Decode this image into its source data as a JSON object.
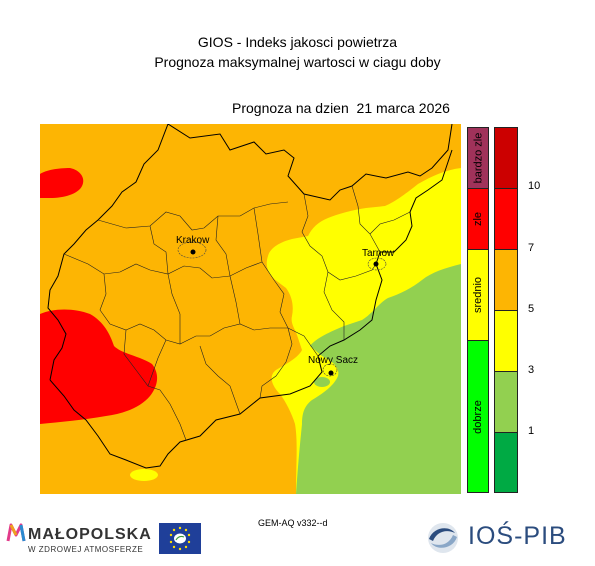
{
  "header": {
    "title": "GIOS - Indeks jakosci powietrza",
    "subtitle": "Prognoza maksymalnej wartosci w ciagu doby",
    "forecast_date": "Prognoza na dzien  21 marca 2026"
  },
  "map": {
    "cities": [
      {
        "name": "Krakow"
      },
      {
        "name": "Tarnow"
      },
      {
        "name": "Nowy Sacz"
      }
    ],
    "colors": {
      "orange": "#FDB503",
      "yellow": "#FFFF00",
      "red": "#FF0000",
      "green": "#92D050"
    }
  },
  "legend": {
    "categories": [
      {
        "label": "bardzo zle",
        "color": "#A0325A"
      },
      {
        "label": "zle",
        "color": "#FF0000"
      },
      {
        "label": "srednio",
        "color": "#FFFF00"
      },
      {
        "label": "dobrze",
        "color": "#00FF00"
      }
    ],
    "value_colors": [
      "#CC0000",
      "#FF0000",
      "#FDB503",
      "#FFFF00",
      "#92D050",
      "#00AA44"
    ],
    "ticks": [
      "10",
      "7",
      "5",
      "3",
      "1"
    ]
  },
  "footer": {
    "model": "GEM-AQ v332--d",
    "malopolska_name": "MAŁOPOLSKA",
    "malopolska_tagline": "W ZDROWEJ ATMOSFERZE",
    "ios_name": "IOŚ-PIB"
  }
}
